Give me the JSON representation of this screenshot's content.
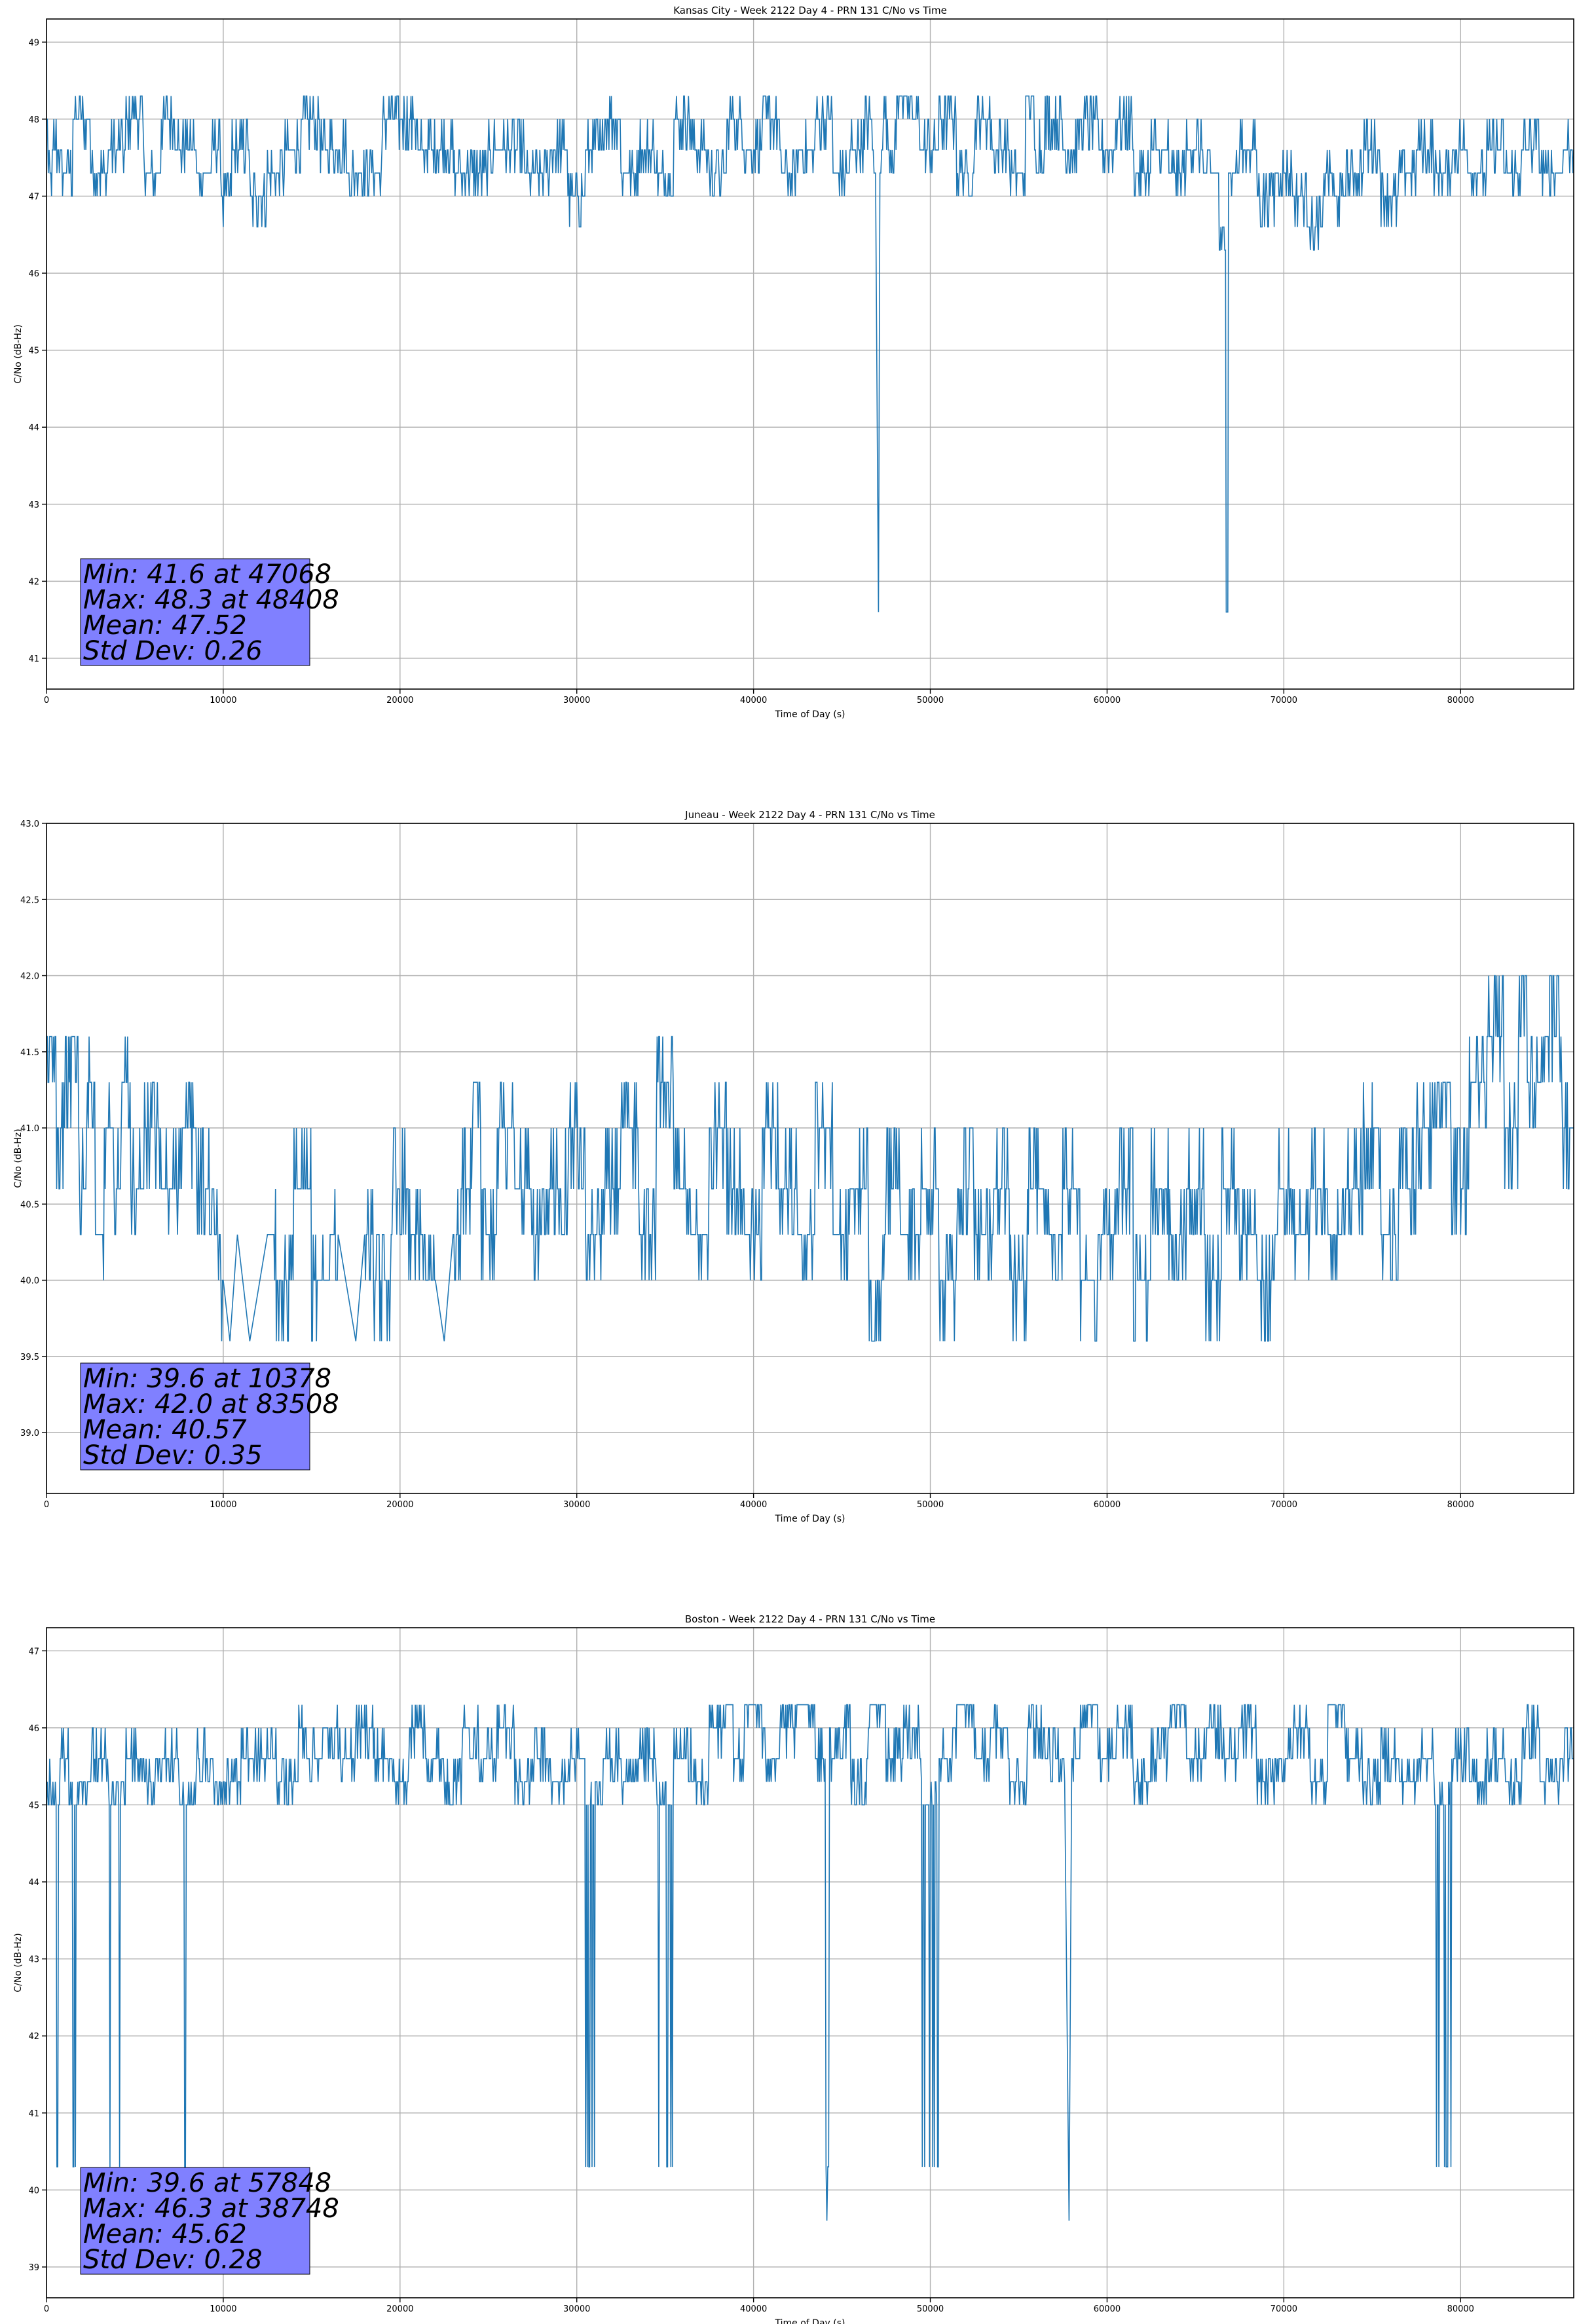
{
  "chart_data": [
    {
      "type": "line",
      "title": "Kansas City - Week 2122 Day 4 - PRN 131 C/No vs Time",
      "xlabel": "Time of Day (s)",
      "ylabel": "C/No (dB-Hz)",
      "xlim": [
        0,
        86400
      ],
      "ylim": [
        40.6,
        49.3
      ],
      "xticks": [
        "0",
        "10000",
        "20000",
        "30000",
        "40000",
        "50000",
        "60000",
        "70000",
        "80000"
      ],
      "yticks": [
        "41",
        "42",
        "43",
        "44",
        "45",
        "46",
        "47",
        "48",
        "49"
      ],
      "grid": true,
      "series_color": "#1f77b4",
      "stats_box_color": "#8080ff",
      "stats": [
        "Min: 41.6 at 47068",
        "Max: 48.3 at 48408",
        "Mean: 47.52",
        "Std Dev: 0.26"
      ],
      "series": [
        {
          "x": [
            0,
            200,
            500,
            1000,
            2000,
            3000,
            4000,
            5000,
            6000,
            7000,
            8000,
            9000,
            9800,
            10000,
            11000,
            12000,
            13000,
            14000,
            15000,
            16000,
            18000,
            20000,
            22000,
            24000,
            26000,
            28000,
            29000,
            30000,
            31000,
            32000,
            33000,
            34000,
            35000,
            36000,
            37000,
            38000,
            39000,
            40000,
            41000,
            42000,
            43000,
            44000,
            45000,
            46000,
            46600,
            46900,
            47068,
            47150,
            47300,
            47800,
            48408,
            49000,
            50000,
            51000,
            52000,
            53000,
            54000,
            55000,
            55800,
            56000,
            57000,
            58000,
            59000,
            60000,
            61000,
            62000,
            63000,
            64000,
            65000,
            66000,
            66700,
            67000,
            68000,
            69000,
            70000,
            71000,
            72000,
            72500,
            73000,
            74000,
            75000,
            76000,
            77000,
            78000,
            79000,
            80000,
            81000,
            82000,
            83000,
            84000,
            85000,
            86400
          ],
          "y": [
            48.0,
            47.3,
            47.6,
            47.3,
            48.0,
            47.3,
            47.6,
            48.0,
            47.3,
            48.0,
            47.6,
            47.3,
            47.6,
            47.0,
            47.6,
            47.0,
            47.3,
            47.6,
            48.0,
            47.6,
            47.3,
            48.0,
            47.6,
            47.3,
            47.6,
            47.3,
            47.6,
            47.0,
            47.6,
            48.0,
            47.3,
            47.6,
            47.3,
            48.0,
            47.6,
            47.3,
            48.0,
            47.6,
            48.0,
            47.3,
            47.6,
            48.0,
            47.3,
            47.6,
            48.0,
            47.3,
            41.6,
            47.3,
            48.0,
            47.6,
            48.3,
            48.0,
            47.6,
            48.0,
            47.3,
            48.0,
            47.6,
            47.3,
            48.3,
            47.6,
            48.0,
            47.6,
            48.0,
            47.6,
            48.0,
            47.3,
            47.6,
            47.3,
            47.6,
            47.3,
            46.3,
            47.3,
            47.6,
            47.0,
            47.3,
            47.0,
            46.6,
            47.3,
            47.0,
            47.3,
            47.6,
            47.0,
            47.3,
            47.6,
            47.3,
            47.6,
            47.3,
            47.6,
            47.3,
            47.6,
            47.3,
            47.6
          ]
        }
      ]
    },
    {
      "type": "line",
      "title": "Juneau - Week 2122 Day 4 - PRN 131 C/No vs Time",
      "xlabel": "Time of Day (s)",
      "ylabel": "C/No (dB-Hz)",
      "xlim": [
        0,
        86400
      ],
      "ylim": [
        38.6,
        43.0
      ],
      "xticks": [
        "0",
        "10000",
        "20000",
        "30000",
        "40000",
        "50000",
        "60000",
        "70000",
        "80000"
      ],
      "yticks": [
        "39.0",
        "39.5",
        "40.0",
        "40.5",
        "41.0",
        "41.5",
        "42.0",
        "42.5",
        "43.0"
      ],
      "grid": true,
      "series_color": "#1f77b4",
      "stats_box_color": "#8080ff",
      "stats": [
        "Min: 39.6 at 10378",
        "Max: 42.0 at 83508",
        "Mean: 40.57",
        "Std Dev: 0.35"
      ],
      "series": [
        {
          "x": [
            0,
            300,
            800,
            1200,
            1600,
            2000,
            2500,
            3000,
            3500,
            4000,
            4500,
            5000,
            6000,
            7000,
            8000,
            9000,
            9600,
            10000,
            10378,
            10800,
            11500,
            12500,
            13500,
            14500,
            15500,
            16500,
            17500,
            18000,
            19000,
            20000,
            21000,
            22000,
            22500,
            23000,
            24000,
            24200,
            25000,
            26000,
            27000,
            28000,
            29000,
            30000,
            31000,
            32000,
            33000,
            34000,
            35000,
            36000,
            37000,
            38000,
            39000,
            40000,
            41000,
            42000,
            43000,
            44000,
            45000,
            46000,
            47000,
            48000,
            49000,
            50000,
            51000,
            52000,
            53000,
            54000,
            55000,
            56000,
            57000,
            58000,
            59000,
            60000,
            61000,
            62000,
            63000,
            64000,
            65000,
            66000,
            67000,
            68000,
            69000,
            70000,
            71000,
            72000,
            73000,
            74000,
            75000,
            76000,
            77000,
            78000,
            79000,
            80000,
            81000,
            82000,
            83000,
            83508,
            84000,
            85000,
            86400
          ],
          "y": [
            41.3,
            41.6,
            41.0,
            41.3,
            41.6,
            40.6,
            41.3,
            40.3,
            41.0,
            40.6,
            41.3,
            40.6,
            41.0,
            40.6,
            41.0,
            40.6,
            40.3,
            40.0,
            39.6,
            40.3,
            39.6,
            40.3,
            40.0,
            40.6,
            40.0,
            40.3,
            39.6,
            40.3,
            40.0,
            40.6,
            40.3,
            40.0,
            39.6,
            40.3,
            40.6,
            41.3,
            40.3,
            41.0,
            40.6,
            40.3,
            40.6,
            41.0,
            40.3,
            40.6,
            41.0,
            40.3,
            41.3,
            40.6,
            40.3,
            41.0,
            40.6,
            40.3,
            41.0,
            40.6,
            40.3,
            41.0,
            40.3,
            40.6,
            40.0,
            40.6,
            40.3,
            40.6,
            40.0,
            40.6,
            40.3,
            40.6,
            40.0,
            40.6,
            40.3,
            40.6,
            40.0,
            40.3,
            40.6,
            40.0,
            40.6,
            40.3,
            40.6,
            40.0,
            40.6,
            40.3,
            40.0,
            40.6,
            40.3,
            40.6,
            40.3,
            40.6,
            41.0,
            40.3,
            40.6,
            41.0,
            41.3,
            40.6,
            41.3,
            41.6,
            41.0,
            42.0,
            41.3,
            41.6,
            41.0
          ]
        }
      ]
    },
    {
      "type": "line",
      "title": "Boston - Week 2122 Day 4 - PRN 131 C/No vs Time",
      "xlabel": "Time of Day (s)",
      "ylabel": "C/No (dB-Hz)",
      "xlim": [
        0,
        86400
      ],
      "ylim": [
        38.6,
        47.3
      ],
      "xticks": [
        "0",
        "10000",
        "20000",
        "30000",
        "40000",
        "50000",
        "60000",
        "70000",
        "80000"
      ],
      "yticks": [
        "39",
        "40",
        "41",
        "42",
        "43",
        "44",
        "45",
        "46",
        "47"
      ],
      "grid": true,
      "series_color": "#1f77b4",
      "stats_box_color": "#8080ff",
      "stats": [
        "Min: 39.6 at 57848",
        "Max: 46.3 at 38748",
        "Mean: 45.62",
        "Std Dev: 0.28"
      ],
      "series": [
        {
          "x": [
            0,
            500,
            1000,
            1500,
            2000,
            3000,
            4000,
            5000,
            6000,
            7000,
            8000,
            9000,
            10000,
            12000,
            14000,
            14500,
            15000,
            16000,
            17000,
            18000,
            19000,
            20000,
            21000,
            22000,
            23000,
            24000,
            25000,
            26000,
            27000,
            28000,
            29000,
            30000,
            31000,
            32000,
            33000,
            34000,
            35000,
            36000,
            37000,
            38000,
            38748,
            39000,
            40000,
            41000,
            42000,
            43000,
            44000,
            44200,
            44400,
            45000,
            46000,
            47000,
            48000,
            49000,
            50000,
            51000,
            52000,
            53000,
            54000,
            55000,
            56000,
            57000,
            57600,
            57848,
            58000,
            59000,
            60000,
            61000,
            62000,
            63000,
            64000,
            65000,
            66000,
            67000,
            68000,
            69000,
            70000,
            71000,
            72000,
            73000,
            74000,
            75000,
            76000,
            77000,
            78000,
            79000,
            80000,
            81000,
            82000,
            83000,
            84000,
            85000,
            86400
          ],
          "y": [
            45.3,
            45.0,
            45.6,
            45.0,
            45.3,
            45.6,
            45.0,
            45.6,
            45.3,
            45.6,
            45.0,
            45.6,
            45.3,
            45.6,
            45.3,
            46.0,
            45.6,
            46.0,
            45.6,
            46.0,
            45.6,
            45.3,
            46.0,
            45.6,
            45.3,
            46.0,
            45.6,
            46.0,
            45.3,
            45.6,
            45.3,
            45.6,
            45.0,
            45.6,
            45.3,
            45.6,
            45.0,
            45.6,
            45.3,
            46.0,
            46.3,
            45.6,
            46.3,
            45.6,
            46.0,
            46.3,
            45.6,
            40.3,
            45.6,
            46.0,
            45.3,
            46.3,
            45.6,
            46.0,
            45.0,
            45.6,
            46.3,
            45.6,
            46.0,
            45.3,
            46.0,
            45.6,
            45.3,
            39.6,
            45.6,
            46.3,
            45.6,
            46.0,
            45.3,
            45.6,
            46.3,
            45.6,
            46.0,
            45.6,
            46.0,
            45.3,
            45.6,
            46.0,
            45.3,
            46.3,
            45.6,
            45.3,
            45.6,
            45.3,
            45.6,
            45.0,
            45.6,
            45.3,
            45.6,
            45.3,
            46.0,
            45.3,
            45.6
          ]
        }
      ]
    }
  ]
}
